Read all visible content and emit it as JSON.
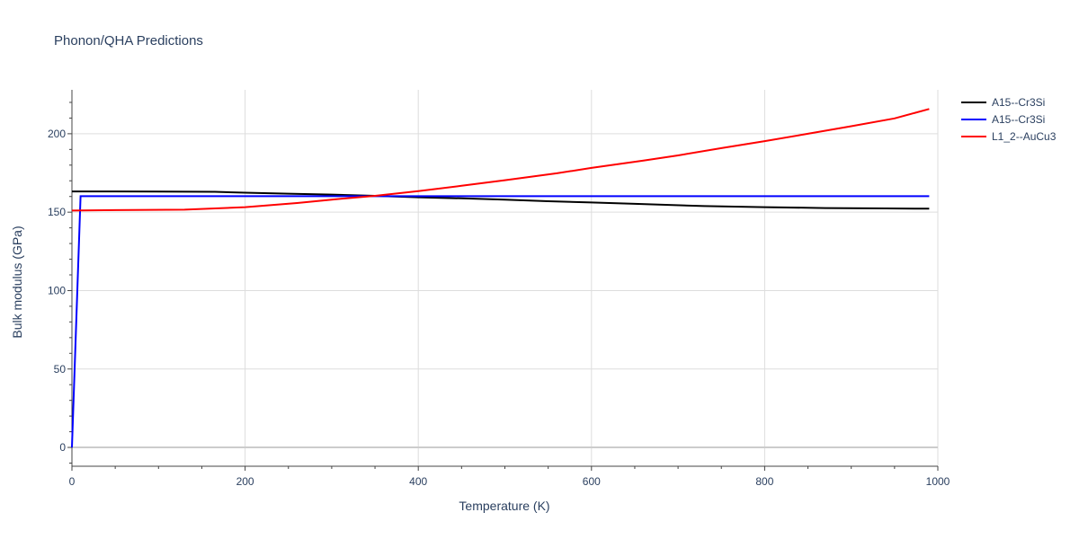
{
  "chart_data": {
    "type": "line",
    "title": "Phonon/QHA Predictions",
    "xlabel": "Temperature (K)",
    "ylabel": "Bulk modulus (GPa)",
    "xlim": [
      0,
      1000
    ],
    "ylim": [
      -12,
      228
    ],
    "xticks": [
      0,
      200,
      400,
      600,
      800,
      1000
    ],
    "yticks": [
      0,
      50,
      100,
      150,
      200
    ],
    "grid": true,
    "legend_position": "top-right",
    "series": [
      {
        "name": "A15--Cr3Si",
        "color": "#000000",
        "x": [
          0,
          50,
          100,
          165,
          200,
          250,
          300,
          350,
          400,
          450,
          500,
          550,
          600,
          650,
          730,
          800,
          870,
          940,
          990
        ],
        "y": [
          163.2,
          163.2,
          163.1,
          163.0,
          162.4,
          161.8,
          161.2,
          160.4,
          159.5,
          158.8,
          158.0,
          157.0,
          156.2,
          155.3,
          153.9,
          153.2,
          152.6,
          152.4,
          152.2
        ]
      },
      {
        "name": "A15--Cr3Si",
        "color": "#0000ff",
        "x": [
          0,
          10,
          50,
          100,
          200,
          300,
          400,
          500,
          600,
          700,
          800,
          900,
          990
        ],
        "y": [
          0,
          160.2,
          160.2,
          160.2,
          160.2,
          160.2,
          160.2,
          160.2,
          160.2,
          160.2,
          160.2,
          160.2,
          160.2
        ]
      },
      {
        "name": "L1_2--AuCu3",
        "color": "#ff0000",
        "x": [
          0,
          50,
          130,
          200,
          260,
          300,
          350,
          400,
          450,
          500,
          560,
          600,
          660,
          700,
          750,
          800,
          850,
          900,
          950,
          990
        ],
        "y": [
          151.0,
          151.3,
          151.6,
          153.2,
          155.8,
          158.0,
          160.4,
          163.4,
          166.8,
          170.4,
          174.8,
          178.2,
          182.9,
          186.2,
          190.8,
          195.3,
          200.0,
          204.8,
          209.8,
          215.8
        ]
      }
    ]
  }
}
